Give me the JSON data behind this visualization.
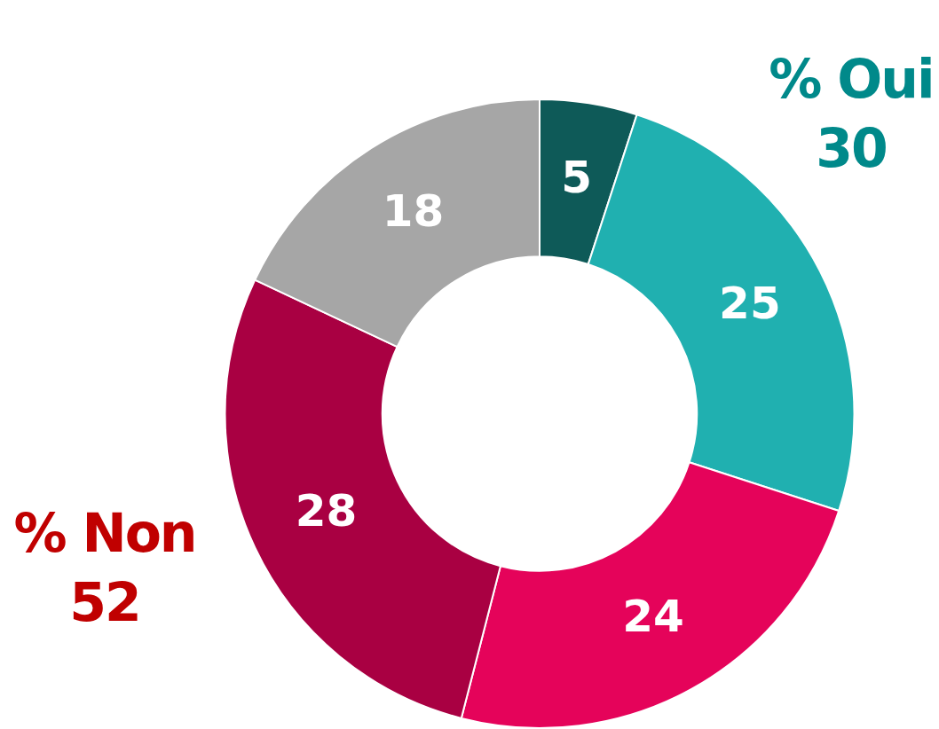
{
  "chart_data": {
    "type": "donut",
    "categories": [
      null,
      null,
      null,
      null,
      null
    ],
    "values": [
      5,
      25,
      24,
      28,
      18
    ],
    "colors": [
      "#0e5a58",
      "#20b0b0",
      "#e5035a",
      "#a90042",
      "#a6a6a6"
    ],
    "data_labels": true,
    "legend": false,
    "annotations": [
      "% Oui 30",
      "% Non 52"
    ]
  }
}
